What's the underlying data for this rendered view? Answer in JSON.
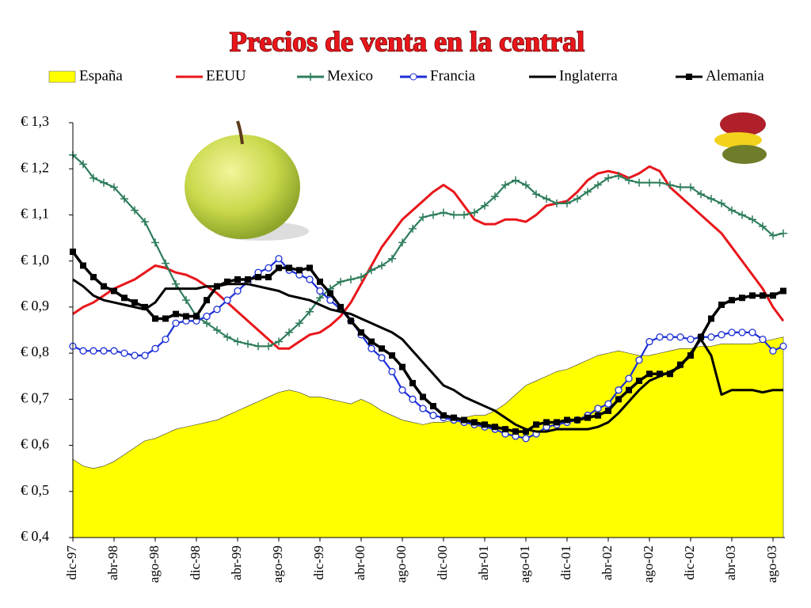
{
  "chart_data": {
    "type": "line",
    "title": "Precios de venta en la central",
    "categories": [
      "dic-97",
      null,
      null,
      null,
      "abr-98",
      null,
      null,
      null,
      "ago-98",
      null,
      null,
      null,
      "dic-98",
      null,
      null,
      null,
      "abr-99",
      null,
      null,
      null,
      "ago-99",
      null,
      null,
      null,
      "dic-99",
      null,
      null,
      null,
      "abr-00",
      null,
      null,
      null,
      "ago-00",
      null,
      null,
      null,
      "dic-00",
      null,
      null,
      null,
      "abr-01",
      null,
      null,
      null,
      "ago-01",
      null,
      null,
      null,
      "dic-01",
      null,
      null,
      null,
      "abr-02",
      null,
      null,
      null,
      "ago-02",
      null,
      null,
      null,
      "dic-02",
      null,
      null,
      null,
      "abr-03",
      null,
      null,
      null,
      "ago-03",
      null
    ],
    "ylim": [
      0.4,
      1.3
    ],
    "yticks": [
      {
        "value": 0.4,
        "label": "€ 0,4"
      },
      {
        "value": 0.5,
        "label": "€ 0,5"
      },
      {
        "value": 0.6,
        "label": "€ 0,6"
      },
      {
        "value": 0.7,
        "label": "€ 0,7"
      },
      {
        "value": 0.8,
        "label": "€ 0,8"
      },
      {
        "value": 0.9,
        "label": "€ 0,9"
      },
      {
        "value": 1.0,
        "label": "€ 1,0"
      },
      {
        "value": 1.1,
        "label": "€ 1,1"
      },
      {
        "value": 1.2,
        "label": "€ 1,2"
      },
      {
        "value": 1.3,
        "label": "€ 1,3"
      }
    ],
    "grid": false,
    "series": [
      {
        "name": "España",
        "color": "#ffff00",
        "kind": "area",
        "marker": null,
        "values": [
          0.57,
          0.555,
          0.55,
          0.555,
          0.565,
          0.58,
          0.595,
          0.61,
          0.615,
          0.625,
          0.635,
          0.64,
          0.645,
          0.65,
          0.655,
          0.665,
          0.675,
          0.685,
          0.695,
          0.705,
          0.715,
          0.72,
          0.715,
          0.705,
          0.705,
          0.7,
          0.695,
          0.69,
          0.7,
          0.69,
          0.675,
          0.665,
          0.655,
          0.65,
          0.645,
          0.65,
          0.65,
          0.655,
          0.66,
          0.665,
          0.665,
          0.675,
          0.69,
          0.71,
          0.73,
          0.74,
          0.75,
          0.76,
          0.765,
          0.775,
          0.785,
          0.795,
          0.8,
          0.805,
          0.8,
          0.795,
          0.795,
          0.8,
          0.805,
          0.81,
          0.81,
          0.815,
          0.815,
          0.82,
          0.82,
          0.82,
          0.82,
          0.825,
          0.83,
          0.835
        ]
      },
      {
        "name": "EEUU",
        "color": "#e8161b",
        "kind": "line",
        "marker": null,
        "values": [
          0.885,
          0.9,
          0.91,
          0.925,
          0.94,
          0.95,
          0.96,
          0.975,
          0.99,
          0.985,
          0.975,
          0.97,
          0.96,
          0.945,
          0.93,
          0.91,
          0.89,
          0.87,
          0.85,
          0.83,
          0.81,
          0.81,
          0.825,
          0.84,
          0.845,
          0.86,
          0.88,
          0.91,
          0.95,
          0.99,
          1.03,
          1.06,
          1.09,
          1.11,
          1.13,
          1.15,
          1.165,
          1.15,
          1.12,
          1.09,
          1.08,
          1.08,
          1.09,
          1.09,
          1.085,
          1.1,
          1.12,
          1.125,
          1.13,
          1.15,
          1.175,
          1.19,
          1.195,
          1.19,
          1.18,
          1.19,
          1.205,
          1.195,
          1.16,
          1.14,
          1.12,
          1.1,
          1.08,
          1.06,
          1.03,
          1.0,
          0.97,
          0.94,
          0.9,
          0.87
        ]
      },
      {
        "name": "Mexico",
        "color": "#2e7d5b",
        "kind": "line",
        "marker": "plus",
        "values": [
          1.23,
          1.21,
          1.18,
          1.17,
          1.16,
          1.135,
          1.11,
          1.085,
          1.04,
          0.995,
          0.95,
          0.915,
          0.88,
          0.865,
          0.85,
          0.835,
          0.825,
          0.82,
          0.815,
          0.815,
          0.825,
          0.845,
          0.865,
          0.89,
          0.92,
          0.94,
          0.955,
          0.96,
          0.965,
          0.98,
          0.99,
          1.005,
          1.04,
          1.07,
          1.095,
          1.1,
          1.105,
          1.1,
          1.1,
          1.105,
          1.12,
          1.14,
          1.165,
          1.175,
          1.165,
          1.145,
          1.135,
          1.125,
          1.125,
          1.135,
          1.15,
          1.165,
          1.18,
          1.185,
          1.175,
          1.17,
          1.17,
          1.17,
          1.165,
          1.16,
          1.16,
          1.145,
          1.135,
          1.125,
          1.11,
          1.1,
          1.09,
          1.075,
          1.055,
          1.06
        ]
      },
      {
        "name": "Francia",
        "color": "#1c2fd6",
        "kind": "line",
        "marker": "circle",
        "values": [
          0.815,
          0.805,
          0.805,
          0.805,
          0.805,
          0.8,
          0.795,
          0.795,
          0.81,
          0.83,
          0.865,
          0.87,
          0.87,
          0.88,
          0.895,
          0.915,
          0.935,
          0.955,
          0.975,
          0.985,
          1.005,
          0.98,
          0.97,
          0.96,
          0.935,
          0.915,
          0.895,
          0.87,
          0.84,
          0.81,
          0.79,
          0.76,
          0.72,
          0.7,
          0.68,
          0.665,
          0.66,
          0.655,
          0.65,
          0.645,
          0.64,
          0.635,
          0.625,
          0.62,
          0.615,
          0.625,
          0.64,
          0.645,
          0.65,
          0.655,
          0.665,
          0.68,
          0.69,
          0.72,
          0.745,
          0.785,
          0.825,
          0.835,
          0.835,
          0.835,
          0.83,
          0.835,
          0.835,
          0.84,
          0.845,
          0.845,
          0.845,
          0.83,
          0.805,
          0.815
        ]
      },
      {
        "name": "Inglaterra",
        "color": "#000000",
        "kind": "line",
        "marker": null,
        "values": [
          0.96,
          0.945,
          0.925,
          0.915,
          0.91,
          0.905,
          0.9,
          0.895,
          0.91,
          0.94,
          0.94,
          0.94,
          0.94,
          0.945,
          0.945,
          0.95,
          0.95,
          0.95,
          0.945,
          0.94,
          0.935,
          0.925,
          0.92,
          0.915,
          0.905,
          0.895,
          0.89,
          0.885,
          0.875,
          0.865,
          0.855,
          0.845,
          0.83,
          0.805,
          0.78,
          0.755,
          0.73,
          0.72,
          0.705,
          0.695,
          0.685,
          0.675,
          0.66,
          0.645,
          0.635,
          0.63,
          0.63,
          0.635,
          0.635,
          0.635,
          0.635,
          0.64,
          0.65,
          0.67,
          0.695,
          0.72,
          0.74,
          0.75,
          0.76,
          0.77,
          0.8,
          0.83,
          0.795,
          0.71,
          0.72,
          0.72,
          0.72,
          0.715,
          0.72,
          0.72
        ]
      },
      {
        "name": "Alemania",
        "color": "#000000",
        "kind": "line",
        "marker": "square",
        "values": [
          1.02,
          0.99,
          0.965,
          0.945,
          0.935,
          0.92,
          0.91,
          0.9,
          0.875,
          0.875,
          0.885,
          0.88,
          0.88,
          0.915,
          0.945,
          0.955,
          0.96,
          0.96,
          0.965,
          0.965,
          0.985,
          0.985,
          0.98,
          0.985,
          0.955,
          0.93,
          0.9,
          0.87,
          0.845,
          0.825,
          0.81,
          0.795,
          0.77,
          0.735,
          0.705,
          0.685,
          0.665,
          0.66,
          0.655,
          0.65,
          0.645,
          0.64,
          0.635,
          0.63,
          0.63,
          0.645,
          0.65,
          0.65,
          0.655,
          0.655,
          0.66,
          0.665,
          0.675,
          0.7,
          0.72,
          0.74,
          0.755,
          0.755,
          0.755,
          0.775,
          0.795,
          0.835,
          0.875,
          0.905,
          0.915,
          0.92,
          0.925,
          0.925,
          0.925,
          0.935
        ]
      }
    ]
  }
}
